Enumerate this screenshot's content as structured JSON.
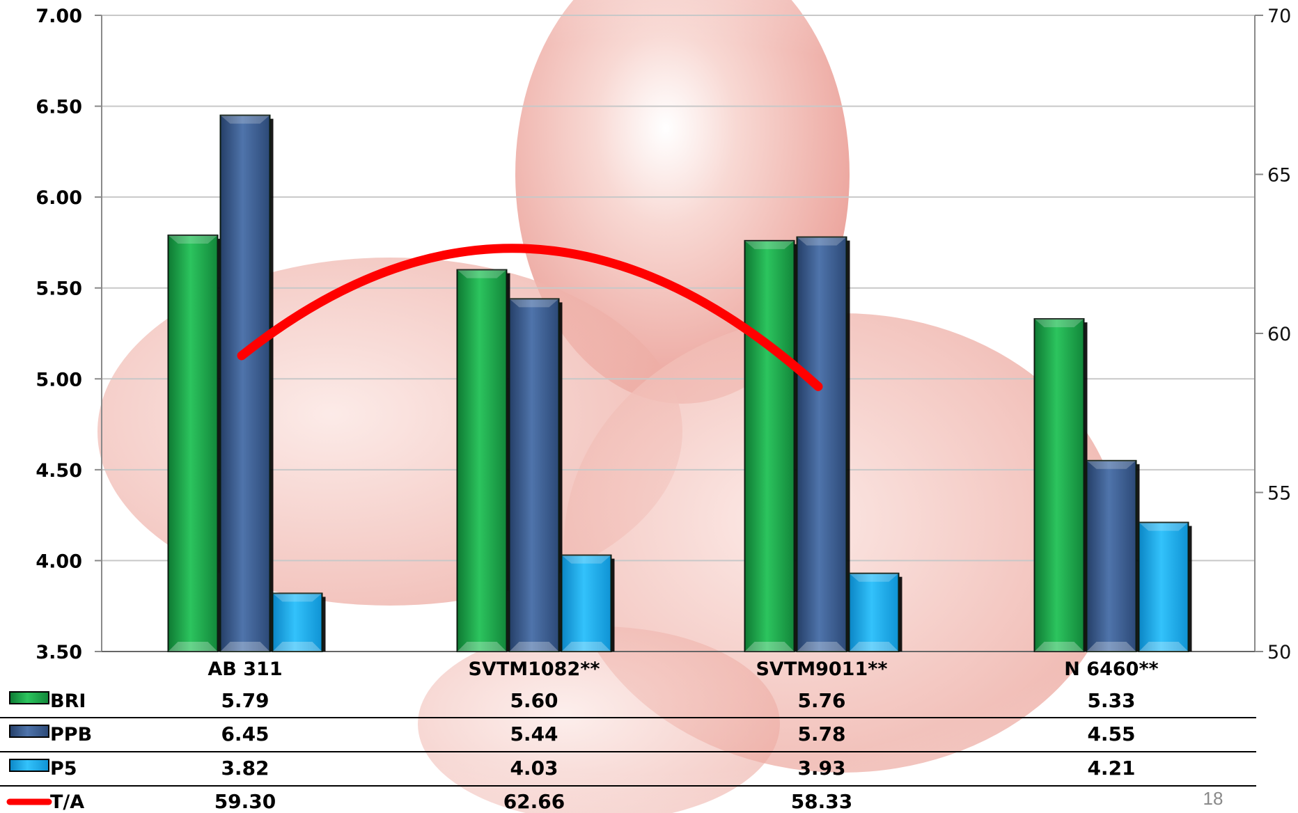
{
  "chart_data": {
    "type": "bar",
    "categories": [
      "AB 311",
      "SVTM1082**",
      "SVTM9011**",
      "N 6460**"
    ],
    "series": [
      {
        "name": "BRI",
        "axis": "left",
        "color": "#1fa84a",
        "values": [
          5.79,
          5.6,
          5.76,
          5.33
        ]
      },
      {
        "name": "PPB",
        "axis": "left",
        "color": "#3a5f95",
        "values": [
          6.45,
          5.44,
          5.78,
          4.55
        ]
      },
      {
        "name": "P5",
        "axis": "left",
        "color": "#1aa8e6",
        "values": [
          3.82,
          4.03,
          3.93,
          4.21
        ]
      },
      {
        "name": "T/A",
        "type": "line",
        "axis": "right",
        "color": "#ff0000",
        "values": [
          59.3,
          62.66,
          58.33,
          null
        ]
      }
    ],
    "table_values": [
      [
        "5.79",
        "5.60",
        "5.76",
        "5.33"
      ],
      [
        "6.45",
        "5.44",
        "5.78",
        "4.55"
      ],
      [
        "3.82",
        "4.03",
        "3.93",
        "4.21"
      ],
      [
        "59.30",
        "62.66",
        "58.33",
        ""
      ]
    ],
    "left_axis": {
      "ylim": [
        3.5,
        7.0
      ],
      "ticks": [
        "3.50",
        "4.00",
        "4.50",
        "5.00",
        "5.50",
        "6.00",
        "6.50",
        "7.00"
      ]
    },
    "right_axis": {
      "ylim": [
        50,
        70
      ],
      "ticks": [
        "50",
        "55",
        "60",
        "65",
        "70"
      ]
    },
    "grid": true,
    "legend": "data-table"
  },
  "page_number": "18"
}
